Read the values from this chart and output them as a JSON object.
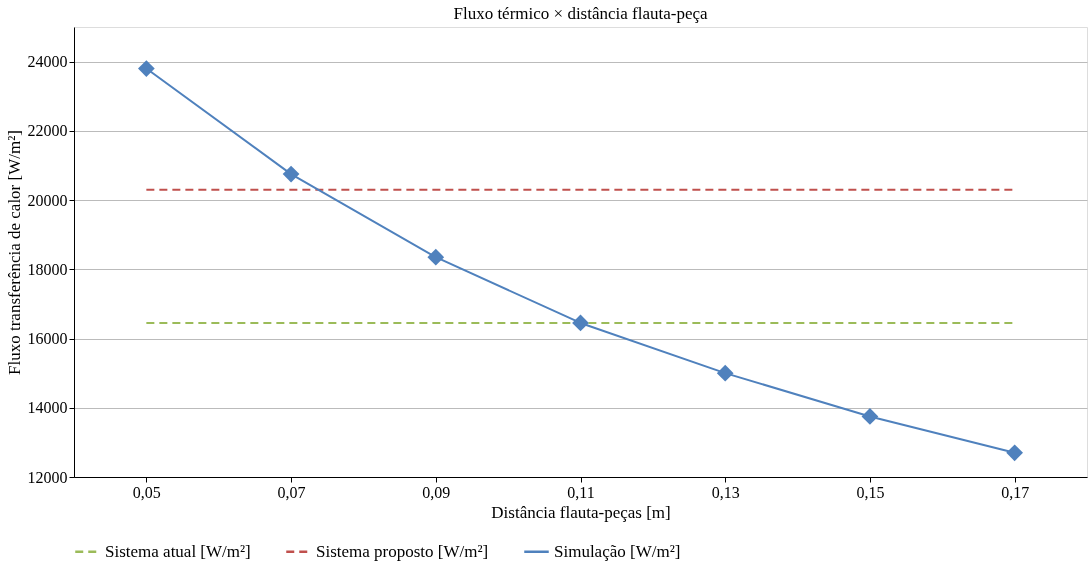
{
  "chart_data": {
    "type": "line",
    "title": "Fluxo térmico × distância flauta-peça",
    "xlabel": "Distância flauta-peças [m]",
    "ylabel": "Fluxo transferência de calor [W/m²]",
    "categories": [
      "0,05",
      "0,07",
      "0,09",
      "0,11",
      "0,13",
      "0,15",
      "0,17"
    ],
    "series": [
      {
        "name": "Sistema atual [W/m²]",
        "color": "#9bbb59",
        "line_style": "dashed",
        "marker": "none",
        "values": [
          16450,
          16450,
          16450,
          16450,
          16450,
          16450,
          16450
        ]
      },
      {
        "name": "Sistema proposto [W/m²]",
        "color": "#c0504d",
        "line_style": "dashed",
        "marker": "none",
        "values": [
          20300,
          20300,
          20300,
          20300,
          20300,
          20300,
          20300
        ]
      },
      {
        "name": "Simulação [W/m²]",
        "color": "#4f81bd",
        "line_style": "solid",
        "marker": "diamond",
        "values": [
          23800,
          20750,
          18350,
          16450,
          15000,
          13750,
          12700
        ]
      }
    ],
    "ylim": [
      12000,
      25000
    ],
    "yticks": [
      12000,
      14000,
      16000,
      18000,
      20000,
      22000,
      24000
    ],
    "grid": "y",
    "legend": "bottom"
  }
}
